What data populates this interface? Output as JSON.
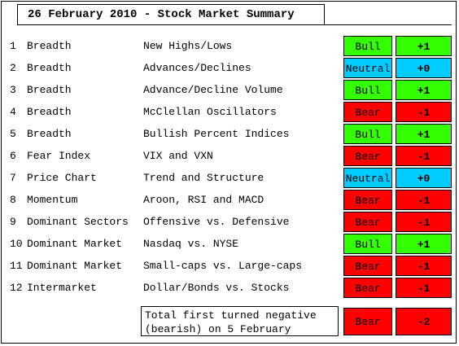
{
  "title": "26 February 2010 - Stock Market Summary",
  "colors": {
    "bull": "#33ff00",
    "neutral": "#00ccff",
    "bear": "#ff0000"
  },
  "rows": [
    {
      "num": "1",
      "category": "Breadth",
      "indicator": "New Highs/Lows",
      "signal": "Bull",
      "score": "+1"
    },
    {
      "num": "2",
      "category": "Breadth",
      "indicator": "Advances/Declines",
      "signal": "Neutral",
      "score": "+0"
    },
    {
      "num": "3",
      "category": "Breadth",
      "indicator": "Advance/Decline Volume",
      "signal": "Bull",
      "score": "+1"
    },
    {
      "num": "4",
      "category": "Breadth",
      "indicator": "McClellan Oscillators",
      "signal": "Bear",
      "score": "-1"
    },
    {
      "num": "5",
      "category": "Breadth",
      "indicator": "Bullish Percent Indices",
      "signal": "Bull",
      "score": "+1"
    },
    {
      "num": "6",
      "category": "Fear Index",
      "indicator": "VIX and VXN",
      "signal": "Bear",
      "score": "-1"
    },
    {
      "num": "7",
      "category": "Price Chart",
      "indicator": "Trend and Structure",
      "signal": "Neutral",
      "score": "+0"
    },
    {
      "num": "8",
      "category": "Momentum",
      "indicator": "Aroon, RSI and MACD",
      "signal": "Bear",
      "score": "-1"
    },
    {
      "num": "9",
      "category": "Dominant Sectors",
      "indicator": "Offensive vs. Defensive",
      "signal": "Bear",
      "score": "-1"
    },
    {
      "num": "10",
      "category": "Dominant Market",
      "indicator": "Nasdaq vs. NYSE",
      "signal": "Bull",
      "score": "+1"
    },
    {
      "num": "11",
      "category": "Dominant Market",
      "indicator": "Small-caps vs. Large-caps",
      "signal": "Bear",
      "score": "-1"
    },
    {
      "num": "12",
      "category": "Intermarket",
      "indicator": "Dollar/Bonds vs. Stocks",
      "signal": "Bear",
      "score": "-1"
    }
  ],
  "total": {
    "line1": "Total first turned negative",
    "line2": "(bearish) on 5 February",
    "signal": "Bear",
    "score": "-2"
  }
}
